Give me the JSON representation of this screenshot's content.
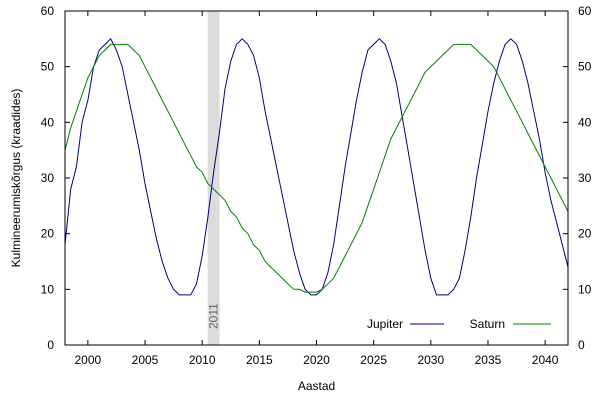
{
  "chart_data": {
    "type": "line",
    "xlabel": "Aastad",
    "ylabel": "Kulmineerumiskõrgus (kraadides)",
    "xlim": [
      1998,
      2042
    ],
    "ylim": [
      0,
      60
    ],
    "x_ticks": [
      2000,
      2005,
      2010,
      2015,
      2020,
      2025,
      2030,
      2035,
      2040
    ],
    "y_ticks": [
      0,
      10,
      20,
      30,
      40,
      50,
      60
    ],
    "grid": false,
    "legend_position": "bottom-right",
    "highlight": {
      "year": 2011,
      "label": "2011",
      "color": "#dcdcdc"
    },
    "series": [
      {
        "name": "Jupiter",
        "color": "#000080",
        "points": [
          [
            1998.0,
            18
          ],
          [
            1998.5,
            28
          ],
          [
            1999.0,
            32
          ],
          [
            1999.5,
            40
          ],
          [
            2000.0,
            44
          ],
          [
            2000.5,
            50
          ],
          [
            2001.0,
            53
          ],
          [
            2001.5,
            54
          ],
          [
            2002.0,
            55
          ],
          [
            2002.5,
            53
          ],
          [
            2003.0,
            50
          ],
          [
            2003.5,
            45
          ],
          [
            2004.0,
            40
          ],
          [
            2004.5,
            35
          ],
          [
            2005.0,
            29
          ],
          [
            2005.5,
            24
          ],
          [
            2006.0,
            19
          ],
          [
            2006.5,
            15
          ],
          [
            2007.0,
            12
          ],
          [
            2007.5,
            10
          ],
          [
            2008.0,
            9
          ],
          [
            2008.5,
            9
          ],
          [
            2009.0,
            9
          ],
          [
            2009.5,
            11
          ],
          [
            2010.0,
            16
          ],
          [
            2010.5,
            23
          ],
          [
            2011.0,
            31
          ],
          [
            2011.5,
            38
          ],
          [
            2012.0,
            46
          ],
          [
            2012.5,
            51
          ],
          [
            2013.0,
            54
          ],
          [
            2013.5,
            55
          ],
          [
            2014.0,
            54
          ],
          [
            2014.5,
            52
          ],
          [
            2015.0,
            48
          ],
          [
            2015.5,
            42
          ],
          [
            2016.0,
            37
          ],
          [
            2016.5,
            32
          ],
          [
            2017.0,
            27
          ],
          [
            2017.5,
            22
          ],
          [
            2018.0,
            17
          ],
          [
            2018.5,
            13
          ],
          [
            2019.0,
            10
          ],
          [
            2019.5,
            9
          ],
          [
            2020.0,
            9
          ],
          [
            2020.5,
            10
          ],
          [
            2021.0,
            13
          ],
          [
            2021.5,
            18
          ],
          [
            2022.0,
            25
          ],
          [
            2022.5,
            32
          ],
          [
            2023.0,
            38
          ],
          [
            2023.5,
            44
          ],
          [
            2024.0,
            49
          ],
          [
            2024.5,
            53
          ],
          [
            2025.0,
            54
          ],
          [
            2025.5,
            55
          ],
          [
            2026.0,
            54
          ],
          [
            2026.5,
            51
          ],
          [
            2027.0,
            47
          ],
          [
            2027.5,
            41
          ],
          [
            2028.0,
            35
          ],
          [
            2028.5,
            29
          ],
          [
            2029.0,
            23
          ],
          [
            2029.5,
            17
          ],
          [
            2030.0,
            12
          ],
          [
            2030.5,
            9
          ],
          [
            2031.0,
            9
          ],
          [
            2031.5,
            9
          ],
          [
            2032.0,
            10
          ],
          [
            2032.5,
            12
          ],
          [
            2033.0,
            17
          ],
          [
            2033.5,
            23
          ],
          [
            2034.0,
            30
          ],
          [
            2034.5,
            36
          ],
          [
            2035.0,
            42
          ],
          [
            2035.5,
            47
          ],
          [
            2036.0,
            51
          ],
          [
            2036.5,
            54
          ],
          [
            2037.0,
            55
          ],
          [
            2037.5,
            54
          ],
          [
            2038.0,
            51
          ],
          [
            2038.5,
            47
          ],
          [
            2039.0,
            42
          ],
          [
            2039.5,
            37
          ],
          [
            2040.0,
            31
          ],
          [
            2040.5,
            26
          ],
          [
            2041.0,
            22
          ],
          [
            2041.5,
            18
          ],
          [
            2042.0,
            14
          ]
        ]
      },
      {
        "name": "Saturn",
        "color": "#008000",
        "points": [
          [
            1998.0,
            35
          ],
          [
            1998.5,
            39
          ],
          [
            1999.0,
            42
          ],
          [
            1999.5,
            45
          ],
          [
            2000.0,
            48
          ],
          [
            2000.5,
            50
          ],
          [
            2001.0,
            52
          ],
          [
            2001.5,
            53
          ],
          [
            2002.0,
            54
          ],
          [
            2002.5,
            54
          ],
          [
            2003.0,
            54
          ],
          [
            2003.5,
            54
          ],
          [
            2004.0,
            53
          ],
          [
            2004.5,
            52
          ],
          [
            2005.0,
            50
          ],
          [
            2005.5,
            48
          ],
          [
            2006.0,
            46
          ],
          [
            2006.5,
            44
          ],
          [
            2007.0,
            42
          ],
          [
            2007.5,
            40
          ],
          [
            2008.0,
            38
          ],
          [
            2008.5,
            36
          ],
          [
            2009.0,
            34
          ],
          [
            2009.5,
            32
          ],
          [
            2010.0,
            31
          ],
          [
            2010.5,
            29
          ],
          [
            2011.0,
            28
          ],
          [
            2011.5,
            27
          ],
          [
            2012.0,
            26
          ],
          [
            2012.5,
            24
          ],
          [
            2013.0,
            23
          ],
          [
            2013.5,
            21
          ],
          [
            2014.0,
            20
          ],
          [
            2014.5,
            18
          ],
          [
            2015.0,
            17
          ],
          [
            2015.5,
            15
          ],
          [
            2016.0,
            14
          ],
          [
            2016.5,
            13
          ],
          [
            2017.0,
            12
          ],
          [
            2017.5,
            11
          ],
          [
            2018.0,
            10
          ],
          [
            2018.5,
            10
          ],
          [
            2019.0,
            9.5
          ],
          [
            2019.5,
            9.5
          ],
          [
            2020.0,
            9.5
          ],
          [
            2020.5,
            10
          ],
          [
            2021.0,
            11
          ],
          [
            2021.5,
            12
          ],
          [
            2022.0,
            14
          ],
          [
            2022.5,
            16
          ],
          [
            2023.0,
            18
          ],
          [
            2023.5,
            20
          ],
          [
            2024.0,
            22
          ],
          [
            2024.5,
            25
          ],
          [
            2025.0,
            28
          ],
          [
            2025.5,
            31
          ],
          [
            2026.0,
            34
          ],
          [
            2026.5,
            37
          ],
          [
            2027.0,
            39
          ],
          [
            2027.5,
            41
          ],
          [
            2028.0,
            43
          ],
          [
            2028.5,
            45
          ],
          [
            2029.0,
            47
          ],
          [
            2029.5,
            49
          ],
          [
            2030.0,
            50
          ],
          [
            2030.5,
            51
          ],
          [
            2031.0,
            52
          ],
          [
            2031.5,
            53
          ],
          [
            2032.0,
            54
          ],
          [
            2032.5,
            54
          ],
          [
            2033.0,
            54
          ],
          [
            2033.5,
            54
          ],
          [
            2034.0,
            53
          ],
          [
            2034.5,
            52
          ],
          [
            2035.0,
            51
          ],
          [
            2035.5,
            50
          ],
          [
            2036.0,
            48
          ],
          [
            2036.5,
            46
          ],
          [
            2037.0,
            44
          ],
          [
            2037.5,
            42
          ],
          [
            2038.0,
            40
          ],
          [
            2038.5,
            38
          ],
          [
            2039.0,
            36
          ],
          [
            2039.5,
            34
          ],
          [
            2040.0,
            32
          ],
          [
            2040.5,
            30
          ],
          [
            2041.0,
            28
          ],
          [
            2041.5,
            26
          ],
          [
            2042.0,
            24
          ]
        ]
      }
    ]
  }
}
